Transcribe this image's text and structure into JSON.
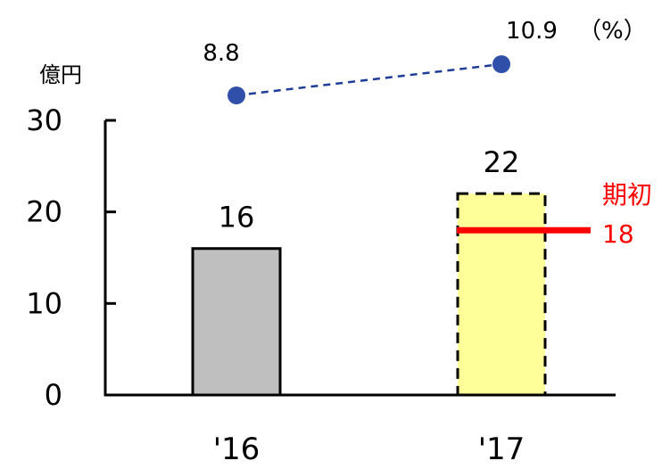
{
  "chart_data": {
    "type": "bar",
    "unit_label": "億円",
    "categories": [
      "'16",
      "'17"
    ],
    "series": [
      {
        "values": [
          16,
          22
        ],
        "data_labels": [
          "16",
          "22"
        ]
      },
      {
        "values": [
          8.8,
          10.9
        ],
        "data_labels": [
          "8.8",
          "10.9"
        ]
      }
    ],
    "percent_unit": "（%）",
    "yticks": [
      "0",
      "10",
      "20",
      "30"
    ],
    "ylim": [
      0,
      30
    ],
    "legend": "none",
    "grid": false,
    "annotation": {
      "label": "期初",
      "value": 18,
      "value_label": "18",
      "category": "'17"
    },
    "colors": {
      "bar_actual": "#bfbfbf",
      "bar_forecast": "#ffff99",
      "line": "#1f3c99",
      "point": "#2f4fa8",
      "annotation": "#ff0000"
    }
  }
}
